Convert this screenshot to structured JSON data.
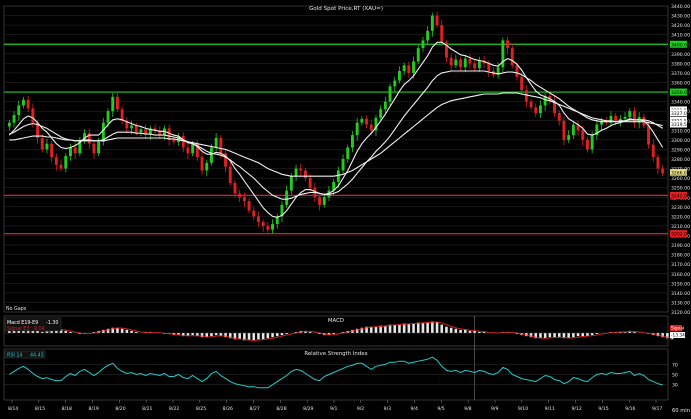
{
  "chart_data": [
    {
      "type": "candlestick",
      "title": "Gold Spot Price,RT (XAU=)",
      "corner_label": "No Gaps",
      "interval_label": "60 min",
      "ylim": [
        3120,
        3440
      ],
      "y_ticks": [
        3120,
        3130,
        3140,
        3150,
        3160,
        3170,
        3180,
        3190,
        3200,
        3210,
        3220,
        3230,
        3240,
        3250,
        3260,
        3270,
        3280,
        3290,
        3300,
        3310,
        3320,
        3330,
        3340,
        3350,
        3360,
        3370,
        3380,
        3390,
        3400,
        3410,
        3420,
        3430,
        3440
      ],
      "y_tick_labels": [
        "3120.00",
        "3130.00",
        "3140.00",
        "3150.00",
        "3160.00",
        "3170.00",
        "3180.00",
        "3190.00",
        "3200.00",
        "3210.00",
        "3220.00",
        "3230.00",
        "3240.00",
        "3250.00",
        "3260.00",
        "3270.00",
        "3280.00",
        "3290.00",
        "3300.00",
        "3310.00",
        "3320.00",
        "3330.00",
        "3340.00",
        "3350.00",
        "3360.00",
        "3370.00",
        "3380.00",
        "3390.00",
        "3400.00",
        "3410.00",
        "3420.00",
        "3430.00",
        "3440.00"
      ],
      "colors": {
        "up": "#22cc22",
        "down": "#e02020",
        "ma": "#f0f0f0",
        "support": "#e02020",
        "resistance": "#22cc22",
        "background": "#000000",
        "grid": "#2e2e2e"
      },
      "horizontal_levels": [
        {
          "value": 3400.0,
          "kind": "resistance",
          "label": "3400.00"
        },
        {
          "value": 3350.0,
          "kind": "resistance",
          "label": "3350.00"
        },
        {
          "value": 3242.0,
          "kind": "support",
          "label": "3242.00"
        },
        {
          "value": 3202.0,
          "kind": "support",
          "label": "3202.00"
        }
      ],
      "price_badges": [
        {
          "value": 3331.5,
          "label": "3331.50"
        },
        {
          "value": 3327.0,
          "label": "3327.00"
        },
        {
          "value": 3321.5,
          "label": "3321.50"
        },
        {
          "value": 3319.5,
          "label": "3319.50"
        },
        {
          "value": 3266.0,
          "label": "3266.00"
        }
      ],
      "close_path": [
        3318,
        3326,
        3336,
        3342,
        3333,
        3318,
        3302,
        3290,
        3296,
        3282,
        3274,
        3270,
        3283,
        3292,
        3286,
        3300,
        3307,
        3296,
        3286,
        3298,
        3318,
        3330,
        3345,
        3332,
        3320,
        3312,
        3315,
        3308,
        3311,
        3306,
        3312,
        3309,
        3305,
        3312,
        3300,
        3298,
        3304,
        3292,
        3286,
        3296,
        3282,
        3268,
        3276,
        3292,
        3302,
        3286,
        3272,
        3255,
        3244,
        3240,
        3236,
        3226,
        3220,
        3214,
        3210,
        3206,
        3212,
        3220,
        3232,
        3247,
        3262,
        3270,
        3268,
        3260,
        3250,
        3240,
        3232,
        3240,
        3247,
        3256,
        3268,
        3280,
        3292,
        3305,
        3318,
        3322,
        3316,
        3310,
        3323,
        3332,
        3340,
        3356,
        3362,
        3372,
        3378,
        3370,
        3382,
        3396,
        3404,
        3414,
        3430,
        3420,
        3402,
        3386,
        3378,
        3384,
        3376,
        3385,
        3380,
        3375,
        3383,
        3380,
        3372,
        3368,
        3376,
        3404,
        3396,
        3378,
        3366,
        3352,
        3340,
        3334,
        3328,
        3336,
        3346,
        3340,
        3328,
        3320,
        3300,
        3305,
        3316,
        3310,
        3300,
        3290,
        3305,
        3316,
        3320,
        3318,
        3325,
        3320,
        3322,
        3324,
        3330,
        3318,
        3324,
        3315,
        3295,
        3282,
        3270,
        3265
      ],
      "ma_fast": [
        3305,
        3310,
        3316,
        3322,
        3325,
        3323,
        3318,
        3312,
        3308,
        3302,
        3296,
        3292,
        3291,
        3292,
        3294,
        3297,
        3302,
        3305,
        3305,
        3305,
        3310,
        3316,
        3321,
        3322,
        3321,
        3319,
        3317,
        3315,
        3314,
        3312,
        3311,
        3310,
        3309,
        3309,
        3307,
        3305,
        3304,
        3300,
        3297,
        3296,
        3293,
        3288,
        3285,
        3285,
        3287,
        3286,
        3283,
        3278,
        3270,
        3264,
        3257,
        3250,
        3243,
        3236,
        3229,
        3224,
        3220,
        3219,
        3221,
        3226,
        3233,
        3240,
        3245,
        3248,
        3248,
        3246,
        3244,
        3243,
        3244,
        3247,
        3252,
        3260,
        3268,
        3278,
        3288,
        3296,
        3302,
        3307,
        3313,
        3320,
        3327,
        3335,
        3343,
        3351,
        3358,
        3362,
        3367,
        3374,
        3381,
        3388,
        3397,
        3402,
        3402,
        3399,
        3395,
        3392,
        3389,
        3388,
        3386,
        3384,
        3383,
        3382,
        3380,
        3378,
        3377,
        3382,
        3385,
        3383,
        3379,
        3373,
        3365,
        3358,
        3351,
        3347,
        3345,
        3343,
        3340,
        3336,
        3328,
        3322,
        3319,
        3316,
        3312,
        3306,
        3305,
        3307,
        3310,
        3312,
        3315,
        3317,
        3318,
        3320,
        3322,
        3321,
        3321,
        3320,
        3315,
        3308,
        3300,
        3292
      ],
      "ma_mid": [
        3306,
        3308,
        3311,
        3314,
        3316,
        3317,
        3316,
        3314,
        3312,
        3309,
        3306,
        3303,
        3301,
        3300,
        3299,
        3299,
        3300,
        3300,
        3299,
        3299,
        3300,
        3303,
        3306,
        3308,
        3308,
        3308,
        3308,
        3307,
        3307,
        3306,
        3306,
        3305,
        3305,
        3305,
        3304,
        3303,
        3302,
        3300,
        3298,
        3296,
        3294,
        3291,
        3288,
        3286,
        3285,
        3284,
        3282,
        3279,
        3275,
        3272,
        3268,
        3264,
        3260,
        3255,
        3250,
        3246,
        3242,
        3240,
        3238,
        3238,
        3239,
        3241,
        3243,
        3244,
        3245,
        3245,
        3244,
        3243,
        3243,
        3244,
        3246,
        3250,
        3254,
        3259,
        3265,
        3271,
        3277,
        3282,
        3288,
        3293,
        3298,
        3304,
        3311,
        3318,
        3325,
        3331,
        3337,
        3343,
        3349,
        3355,
        3362,
        3367,
        3370,
        3371,
        3372,
        3372,
        3372,
        3372,
        3372,
        3372,
        3372,
        3372,
        3371,
        3370,
        3369,
        3370,
        3371,
        3371,
        3370,
        3368,
        3365,
        3362,
        3358,
        3355,
        3352,
        3349,
        3346,
        3343,
        3339,
        3335,
        3332,
        3329,
        3326,
        3323,
        3321,
        3320,
        3319,
        3319,
        3319,
        3319,
        3320,
        3320,
        3321,
        3321,
        3321,
        3321,
        3320,
        3318,
        3315,
        3312
      ],
      "ma_slow": [
        3300,
        3300,
        3301,
        3302,
        3303,
        3304,
        3304,
        3304,
        3303,
        3303,
        3302,
        3301,
        3300,
        3300,
        3299,
        3299,
        3299,
        3299,
        3299,
        3299,
        3299,
        3300,
        3301,
        3302,
        3302,
        3302,
        3302,
        3302,
        3302,
        3302,
        3302,
        3302,
        3302,
        3302,
        3301,
        3301,
        3300,
        3299,
        3298,
        3297,
        3296,
        3295,
        3294,
        3293,
        3292,
        3291,
        3290,
        3288,
        3286,
        3284,
        3282,
        3280,
        3278,
        3276,
        3273,
        3270,
        3268,
        3266,
        3264,
        3263,
        3262,
        3262,
        3262,
        3262,
        3262,
        3262,
        3262,
        3262,
        3262,
        3262,
        3263,
        3264,
        3266,
        3268,
        3271,
        3274,
        3277,
        3280,
        3283,
        3286,
        3290,
        3294,
        3298,
        3302,
        3306,
        3310,
        3314,
        3318,
        3322,
        3326,
        3330,
        3334,
        3337,
        3339,
        3341,
        3342,
        3343,
        3344,
        3345,
        3346,
        3347,
        3348,
        3348,
        3348,
        3348,
        3349,
        3349,
        3349,
        3349,
        3348,
        3347,
        3346,
        3345,
        3344,
        3342,
        3341,
        3339,
        3337,
        3335,
        3333,
        3331,
        3329,
        3327,
        3325,
        3323,
        3322,
        3321,
        3320,
        3320,
        3319,
        3319,
        3319,
        3319,
        3319,
        3319,
        3319,
        3318,
        3317,
        3316,
        3315
      ]
    },
    {
      "type": "bar",
      "title": "MACD",
      "legend": [
        {
          "label": "Macd E19-E9",
          "value": "-1.30",
          "color": "#ffffff"
        },
        {
          "label": "Signal E3",
          "value": "0.04",
          "color": "#e02020"
        }
      ],
      "right_badges": [
        "Signal",
        "-13.34"
      ],
      "histogram": [
        2,
        3,
        4,
        5,
        6,
        4,
        2,
        1,
        2,
        3,
        4,
        3,
        2,
        1,
        0,
        -1,
        -1,
        0,
        1,
        2,
        3,
        4,
        5,
        5,
        4,
        3,
        2,
        1,
        0,
        1,
        1,
        0,
        0,
        -1,
        -1,
        -2,
        -2,
        -3,
        -3,
        -2,
        -3,
        -4,
        -4,
        -3,
        -2,
        -3,
        -4,
        -5,
        -6,
        -6,
        -7,
        -7,
        -7,
        -6,
        -6,
        -5,
        -4,
        -3,
        -2,
        -1,
        0,
        1,
        2,
        2,
        1,
        0,
        -1,
        -2,
        -2,
        -1,
        0,
        1,
        2,
        3,
        4,
        5,
        6,
        6,
        6,
        7,
        7,
        8,
        8,
        8,
        9,
        9,
        9,
        10,
        10,
        10,
        11,
        10,
        8,
        6,
        5,
        4,
        3,
        3,
        2,
        2,
        1,
        1,
        0,
        0,
        0,
        1,
        1,
        0,
        -1,
        -2,
        -3,
        -4,
        -5,
        -5,
        -5,
        -4,
        -4,
        -4,
        -5,
        -5,
        -4,
        -3,
        -3,
        -3,
        -2,
        -1,
        0,
        0,
        1,
        1,
        1,
        1,
        2,
        1,
        0,
        0,
        -1,
        -2,
        -3,
        -4,
        -5,
        -6
      ]
    },
    {
      "type": "line",
      "title": "Relative Strength Index",
      "legend": [
        {
          "label": "RSI 14",
          "value": "44.43",
          "color": "#22cccc"
        }
      ],
      "ylim": [
        0,
        100
      ],
      "y_ticks": [
        30,
        50,
        70
      ],
      "values": [
        50,
        56,
        62,
        66,
        60,
        52,
        46,
        42,
        44,
        40,
        38,
        38,
        46,
        52,
        48,
        56,
        60,
        54,
        48,
        54,
        62,
        68,
        72,
        62,
        56,
        52,
        54,
        50,
        52,
        48,
        52,
        50,
        48,
        52,
        46,
        46,
        50,
        44,
        42,
        48,
        42,
        36,
        42,
        52,
        56,
        48,
        42,
        36,
        32,
        30,
        28,
        26,
        26,
        24,
        24,
        24,
        30,
        36,
        42,
        48,
        56,
        60,
        58,
        52,
        46,
        40,
        38,
        46,
        50,
        54,
        58,
        62,
        66,
        68,
        72,
        72,
        66,
        60,
        66,
        68,
        70,
        74,
        74,
        76,
        76,
        72,
        74,
        76,
        78,
        80,
        84,
        78,
        66,
        58,
        56,
        58,
        54,
        58,
        56,
        54,
        58,
        56,
        52,
        50,
        54,
        64,
        60,
        50,
        46,
        42,
        40,
        38,
        36,
        42,
        48,
        46,
        40,
        38,
        32,
        36,
        44,
        42,
        38,
        36,
        44,
        50,
        52,
        50,
        54,
        52,
        52,
        54,
        56,
        48,
        52,
        48,
        40,
        36,
        32,
        30
      ]
    }
  ],
  "x_axis": {
    "ticks": [
      "8/14",
      "8/15",
      "8/18",
      "8/19",
      "8/20",
      "8/21",
      "8/22",
      "8/25",
      "8/26",
      "8/27",
      "8/28",
      "8/29",
      "9/1",
      "9/2",
      "9/3",
      "9/4",
      "9/5",
      "9/8",
      "9/9",
      "9/10",
      "9/11",
      "9/12",
      "9/15",
      "9/16",
      "9/17"
    ]
  }
}
